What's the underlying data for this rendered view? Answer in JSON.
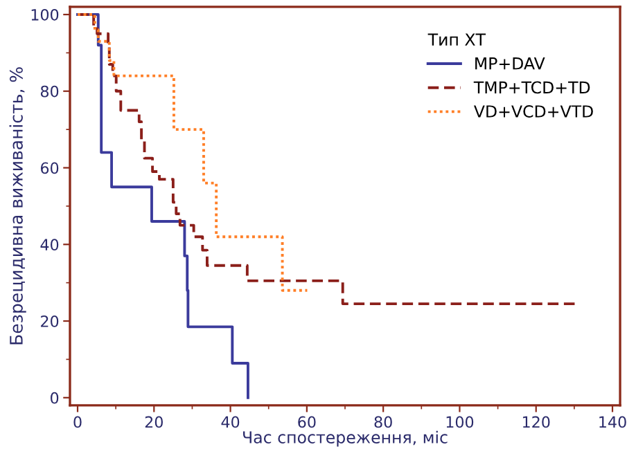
{
  "chart_data": {
    "type": "step",
    "xlabel": "Час спостереження, міс",
    "ylabel": "Безрецидивна виживаність, %",
    "legend_title": "Тип ХТ",
    "legend": "top right",
    "grid": false,
    "xlim": [
      -2,
      142
    ],
    "xticks": [
      0,
      20,
      40,
      60,
      80,
      100,
      120,
      140
    ],
    "ylim": [
      -2,
      102
    ],
    "yticks": [
      0,
      20,
      40,
      60,
      80,
      100
    ],
    "series": [
      {
        "name": "MP+DAV",
        "color": "#3b3b9c",
        "line_style": "solid",
        "x": [
          0,
          5.4,
          6.2,
          8.9,
          19.4,
          28,
          28.7,
          28.9,
          40.5,
          44.6
        ],
        "values": [
          100,
          92,
          64,
          55,
          46,
          37,
          28,
          18.5,
          9,
          0
        ]
      },
      {
        "name": "TMP+TCD+TD",
        "color": "#8b1f1a",
        "line_style": "dashed",
        "x": [
          0,
          4.2,
          5.1,
          8,
          8.3,
          9.2,
          10.1,
          11.3,
          16.1,
          16.7,
          17.5,
          19.6,
          21.4,
          25,
          25.8,
          26.8,
          30.4,
          32.7,
          33.9,
          44.4,
          69.4,
          130.4
        ],
        "values": [
          100,
          97,
          95,
          92,
          87,
          84,
          80,
          75,
          72,
          67,
          62.5,
          59,
          57,
          51,
          48,
          45,
          42,
          38.5,
          34.5,
          30.5,
          24.5,
          24.5
        ]
      },
      {
        "name": "VD+VCD+VTD",
        "color": "#ff7f27",
        "line_style": "dotted",
        "x": [
          0,
          4.5,
          5.4,
          8.3,
          9.5,
          25.2,
          33,
          36.3,
          53.6,
          60.1
        ],
        "values": [
          100,
          96,
          93,
          88,
          84,
          70,
          56,
          42,
          28,
          28
        ]
      }
    ]
  }
}
